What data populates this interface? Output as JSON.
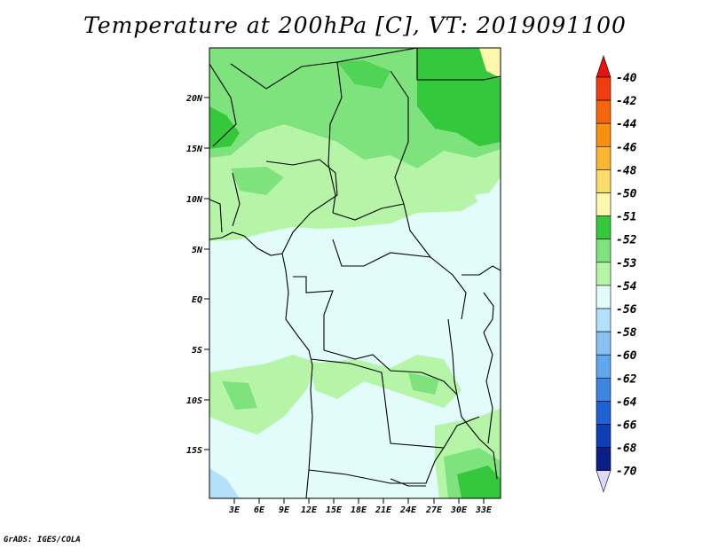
{
  "title": "Temperature at 200hPa [C], VT: 2019091100",
  "credit": "GrADS: IGES/COLA",
  "map": {
    "lat_labels": [
      "20N",
      "15N",
      "10N",
      "5N",
      "EQ",
      "5S",
      "10S",
      "15S"
    ],
    "lon_labels": [
      "3E",
      "6E",
      "9E",
      "12E",
      "15E",
      "18E",
      "21E",
      "24E",
      "27E",
      "30E",
      "33E"
    ]
  },
  "colorbar": {
    "levels": [
      {
        "label": "-40",
        "color": "#e8120e"
      },
      {
        "label": "-42",
        "color": "#f03c0f"
      },
      {
        "label": "-44",
        "color": "#f5660c"
      },
      {
        "label": "-46",
        "color": "#f8900e"
      },
      {
        "label": "-48",
        "color": "#fab734"
      },
      {
        "label": "-50",
        "color": "#fbdb6a"
      },
      {
        "label": "-51",
        "color": "#fdf7ae"
      },
      {
        "label": "-52",
        "color": "#36c83c"
      },
      {
        "label": "-53",
        "color": "#7ee37c"
      },
      {
        "label": "-54",
        "color": "#b6f4a8"
      },
      {
        "label": "-56",
        "color": "#e2fcfc"
      },
      {
        "label": "-58",
        "color": "#b3e0fa"
      },
      {
        "label": "-60",
        "color": "#87c2f3"
      },
      {
        "label": "-62",
        "color": "#5ea7ec"
      },
      {
        "label": "-64",
        "color": "#3d85e0"
      },
      {
        "label": "-66",
        "color": "#1e62d5"
      },
      {
        "label": "-68",
        "color": "#0d3eb6"
      },
      {
        "label": "-70",
        "color": "#0a1f86"
      }
    ],
    "bottom_color": "#ded7f7"
  }
}
